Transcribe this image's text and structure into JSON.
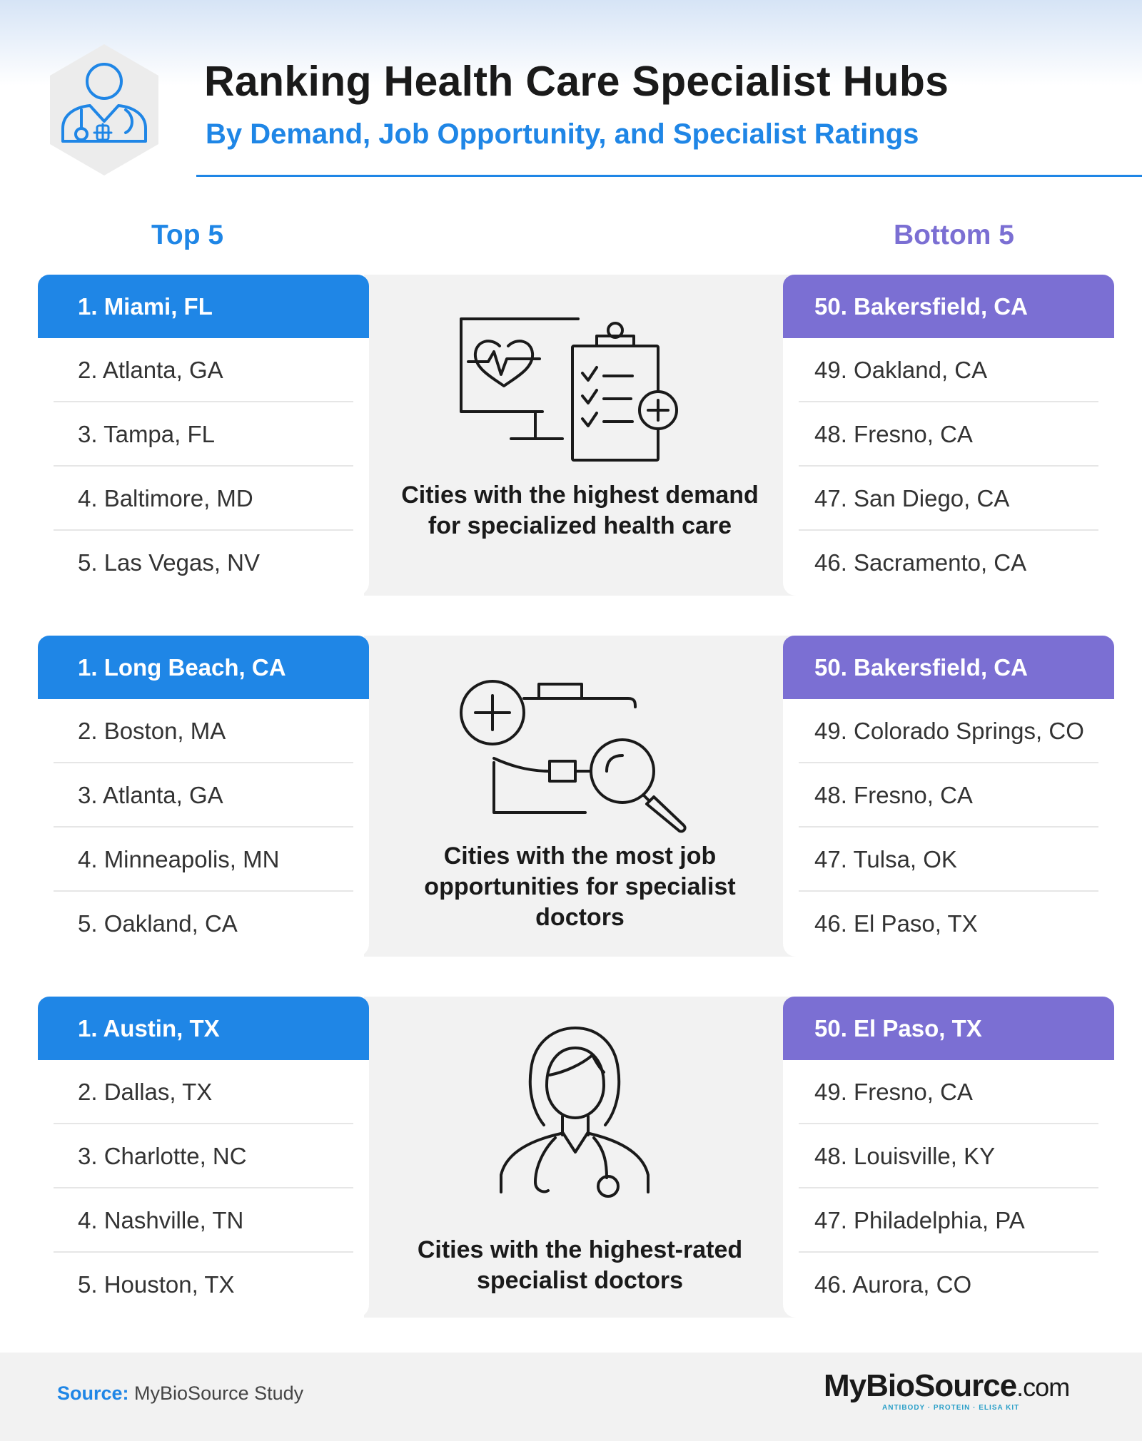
{
  "header": {
    "title": "Ranking Health Care Specialist Hubs",
    "subtitle": "By Demand, Job Opportunity, and Specialist Ratings",
    "icon": "doctor-icon"
  },
  "columns": {
    "top_label": "Top 5",
    "bottom_label": "Bottom 5"
  },
  "sections": [
    {
      "caption": "Cities with the highest demand for specialized health care",
      "icon": "monitor-clipboard-icon",
      "top": [
        "1. Miami, FL",
        "2. Atlanta, GA",
        "3. Tampa, FL",
        "4. Baltimore, MD",
        "5. Las Vegas, NV"
      ],
      "bottom": [
        "50. Bakersfield, CA",
        "49. Oakland, CA",
        "48. Fresno, CA",
        "47. San Diego, CA",
        "46. Sacramento, CA"
      ]
    },
    {
      "caption": "Cities with the most job opportunities for specialist doctors",
      "icon": "briefcase-search-icon",
      "top": [
        "1. Long Beach, CA",
        "2. Boston, MA",
        "3. Atlanta, GA",
        "4. Minneapolis, MN",
        "5. Oakland, CA"
      ],
      "bottom": [
        "50. Bakersfield, CA",
        "49. Colorado Springs, CO",
        "48. Fresno, CA",
        "47. Tulsa, OK",
        "46. El Paso, TX"
      ]
    },
    {
      "caption": "Cities with the highest-rated specialist doctors",
      "icon": "female-doctor-icon",
      "top": [
        "1. Austin, TX",
        "2. Dallas, TX",
        "3. Charlotte, NC",
        "4. Nashville, TN",
        "5. Houston, TX"
      ],
      "bottom": [
        "50. El Paso, TX",
        "49. Fresno, CA",
        "48. Louisville, KY",
        "47. Philadelphia, PA",
        "46. Aurora, CO"
      ]
    }
  ],
  "footer": {
    "source_label": "Source:",
    "source_text": "MyBioSource Study",
    "logo_main": "MyBioSource",
    "logo_suffix": ".com",
    "logo_tagline": "ANTIBODY · PROTEIN · ELISA KIT"
  },
  "colors": {
    "accent_blue": "#1f86e6",
    "accent_purple": "#7b6fd3",
    "panel_gray": "#f2f2f2"
  }
}
